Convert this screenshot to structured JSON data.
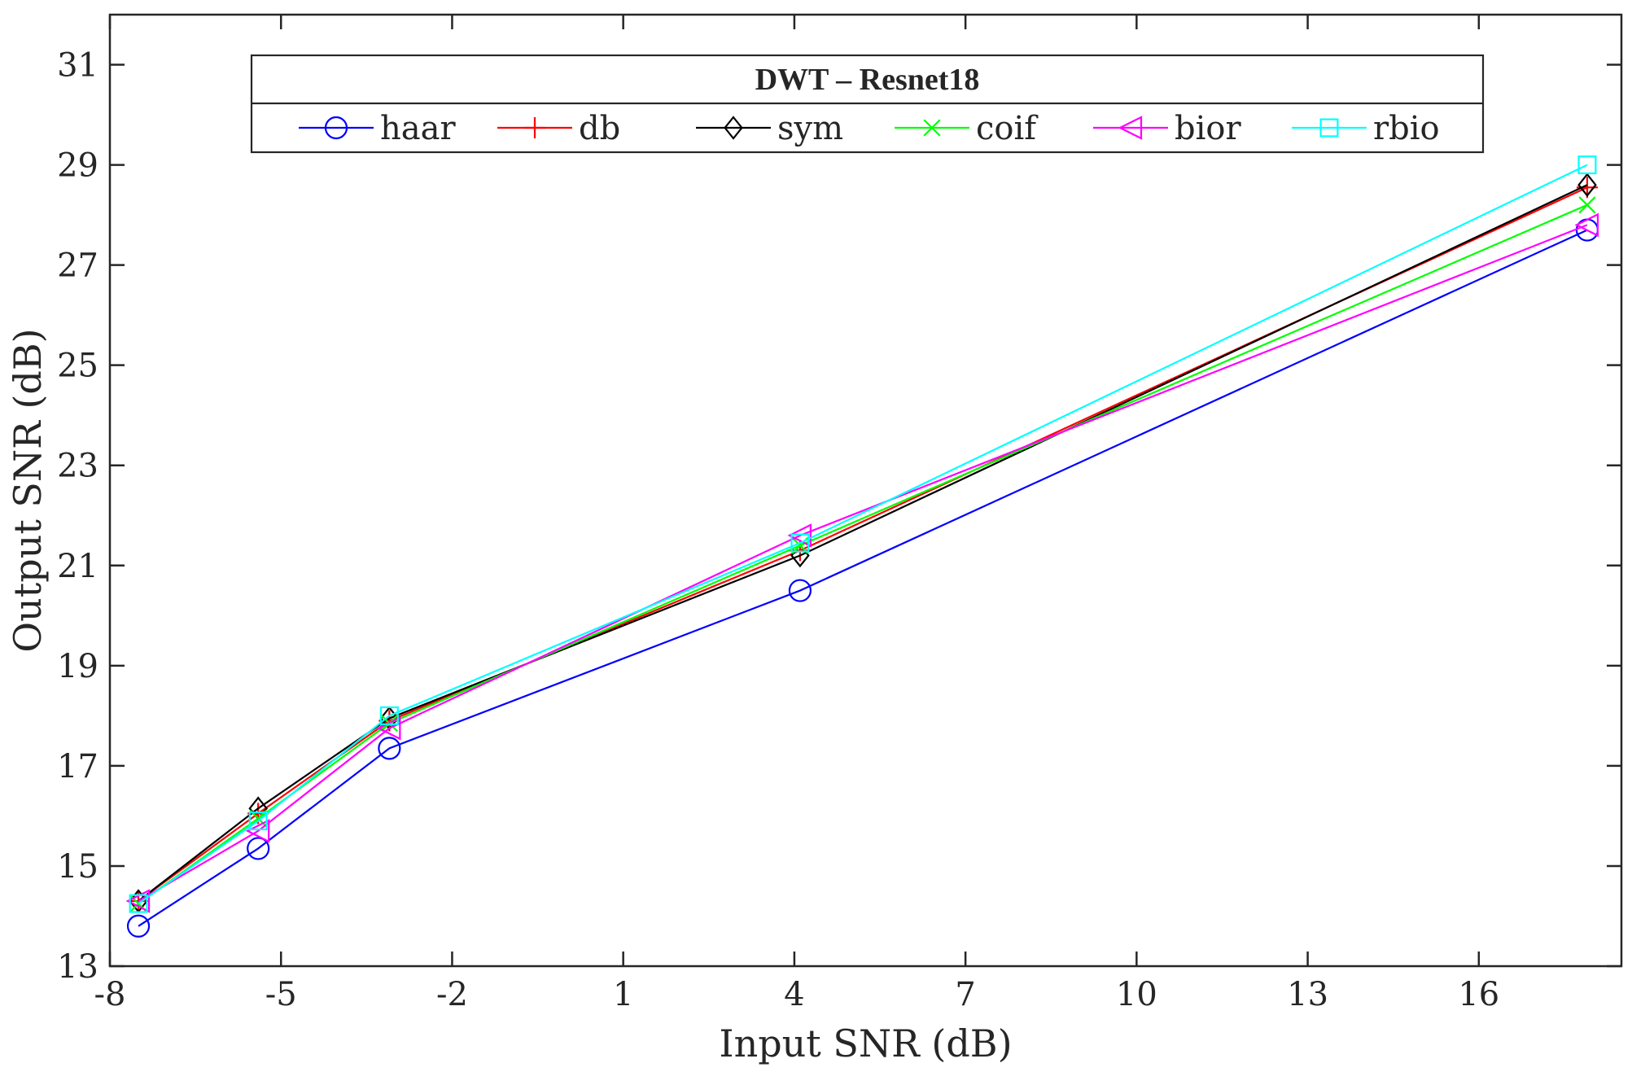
{
  "chart_data": {
    "type": "line",
    "xlabel": "Input SNR (dB)",
    "ylabel": "Output SNR (dB)",
    "xlim": [
      -8,
      18.5
    ],
    "ylim": [
      13,
      32
    ],
    "xticks": [
      "-8",
      "-5",
      "-2",
      "1",
      "4",
      "7",
      "10",
      "13",
      "16"
    ],
    "yticks": [
      "13",
      "15",
      "17",
      "19",
      "21",
      "23",
      "25",
      "27",
      "29",
      "31"
    ],
    "grid": false,
    "legend": {
      "title": "DWT – Resnet18",
      "placement": "top",
      "orientation": "horizontal"
    },
    "x": [
      -7.5,
      -5.4,
      -3.1,
      4.1,
      17.9
    ],
    "series": [
      {
        "name": "haar",
        "color": "#0000ff",
        "marker": "circle",
        "values": [
          13.8,
          15.35,
          17.35,
          20.5,
          27.7
        ]
      },
      {
        "name": "db",
        "color": "#ff0000",
        "marker": "plus",
        "values": [
          14.3,
          16.05,
          17.9,
          21.3,
          28.55
        ]
      },
      {
        "name": "sym",
        "color": "#000000",
        "marker": "diamond",
        "values": [
          14.3,
          16.15,
          17.95,
          21.2,
          28.6
        ]
      },
      {
        "name": "coif",
        "color": "#00ff00",
        "marker": "x",
        "values": [
          14.25,
          15.95,
          17.85,
          21.4,
          28.2
        ]
      },
      {
        "name": "bior",
        "color": "#ff00ff",
        "marker": "triangle-left",
        "values": [
          14.3,
          15.7,
          17.75,
          21.6,
          27.8
        ]
      },
      {
        "name": "rbio",
        "color": "#00ffff",
        "marker": "square",
        "values": [
          14.25,
          15.9,
          18.0,
          21.45,
          29.0
        ]
      }
    ]
  }
}
